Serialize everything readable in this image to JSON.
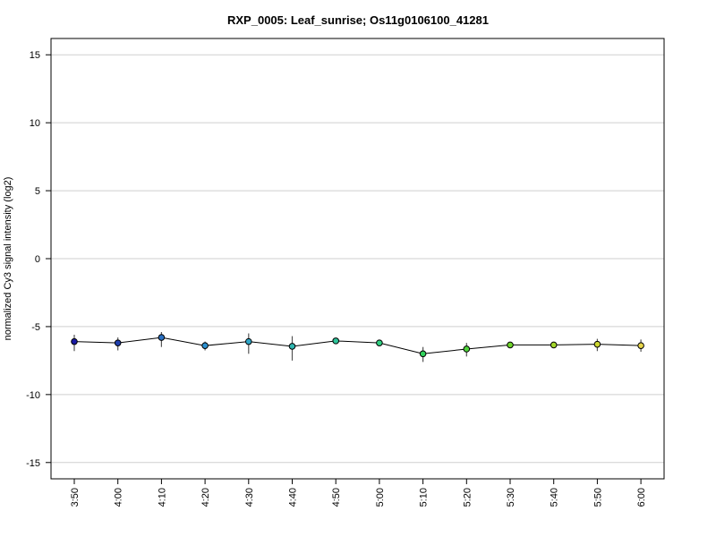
{
  "chart_data": {
    "type": "line",
    "title": "RXP_0005: Leaf_sunrise; Os11g0106100_41281",
    "xlabel": "",
    "ylabel": "normalized Cy3 signal intensity (log2)",
    "ylim": [
      -16.2,
      16.2
    ],
    "yticks": [
      15,
      10,
      5,
      0,
      -5,
      -10,
      -15
    ],
    "grid": true,
    "categories": [
      "3:50",
      "4:00",
      "4:10",
      "4:20",
      "4:30",
      "4:40",
      "4:50",
      "5:00",
      "5:10",
      "5:20",
      "5:30",
      "5:40",
      "5:50",
      "6:00"
    ],
    "series": [
      {
        "values": [
          -6.1,
          -6.2,
          -5.8,
          -6.4,
          -6.1,
          -6.45,
          -6.05,
          -6.2,
          -7.0,
          -6.65,
          -6.35,
          -6.35,
          -6.3,
          -6.4
        ],
        "error_low": [
          -6.8,
          -6.75,
          -6.5,
          -6.75,
          -7.0,
          -7.5,
          -6.1,
          -6.3,
          -7.6,
          -7.2,
          -6.45,
          -6.5,
          -6.8,
          -6.85
        ],
        "error_high": [
          -5.6,
          -5.8,
          -5.4,
          -6.1,
          -5.5,
          -5.7,
          -5.95,
          -6.1,
          -6.5,
          -6.2,
          -6.25,
          -6.2,
          -5.9,
          -5.95
        ],
        "point_colors": [
          "#1a1aa6",
          "#1f3fae",
          "#2a6fc1",
          "#2c90d0",
          "#2fa6c8",
          "#2fb6b0",
          "#2ec49a",
          "#2fcf80",
          "#2fd15a",
          "#4fd33a",
          "#6fd52a",
          "#a2d52a",
          "#ccd630",
          "#e8d64a"
        ]
      }
    ]
  }
}
